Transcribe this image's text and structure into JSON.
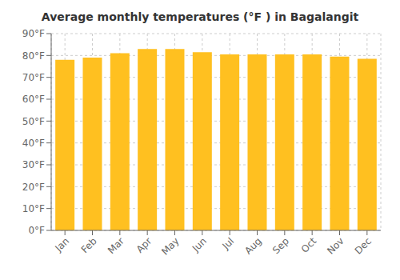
{
  "chart_data": {
    "type": "bar",
    "title": "Average monthly temperatures (°F ) in Bagalangit",
    "categories": [
      "Jan",
      "Feb",
      "Mar",
      "Apr",
      "May",
      "Jun",
      "Jul",
      "Aug",
      "Sep",
      "Oct",
      "Nov",
      "Dec"
    ],
    "values": [
      78.0,
      79.0,
      81.0,
      83.0,
      83.0,
      81.5,
      80.5,
      80.5,
      80.5,
      80.5,
      79.5,
      78.5
    ],
    "color": "#FFC020",
    "ylim": [
      0,
      90
    ],
    "yticks": [
      {
        "value": 0,
        "label": "0°F"
      },
      {
        "value": 10,
        "label": "10°F"
      },
      {
        "value": 20,
        "label": "20°F"
      },
      {
        "value": 30,
        "label": "30°F"
      },
      {
        "value": 40,
        "label": "40°F"
      },
      {
        "value": 50,
        "label": "50°F"
      },
      {
        "value": 60,
        "label": "60°F"
      },
      {
        "value": 70,
        "label": "70°F"
      },
      {
        "value": 80,
        "label": "80°F"
      },
      {
        "value": 90,
        "label": "90°F"
      }
    ],
    "grid": true
  }
}
